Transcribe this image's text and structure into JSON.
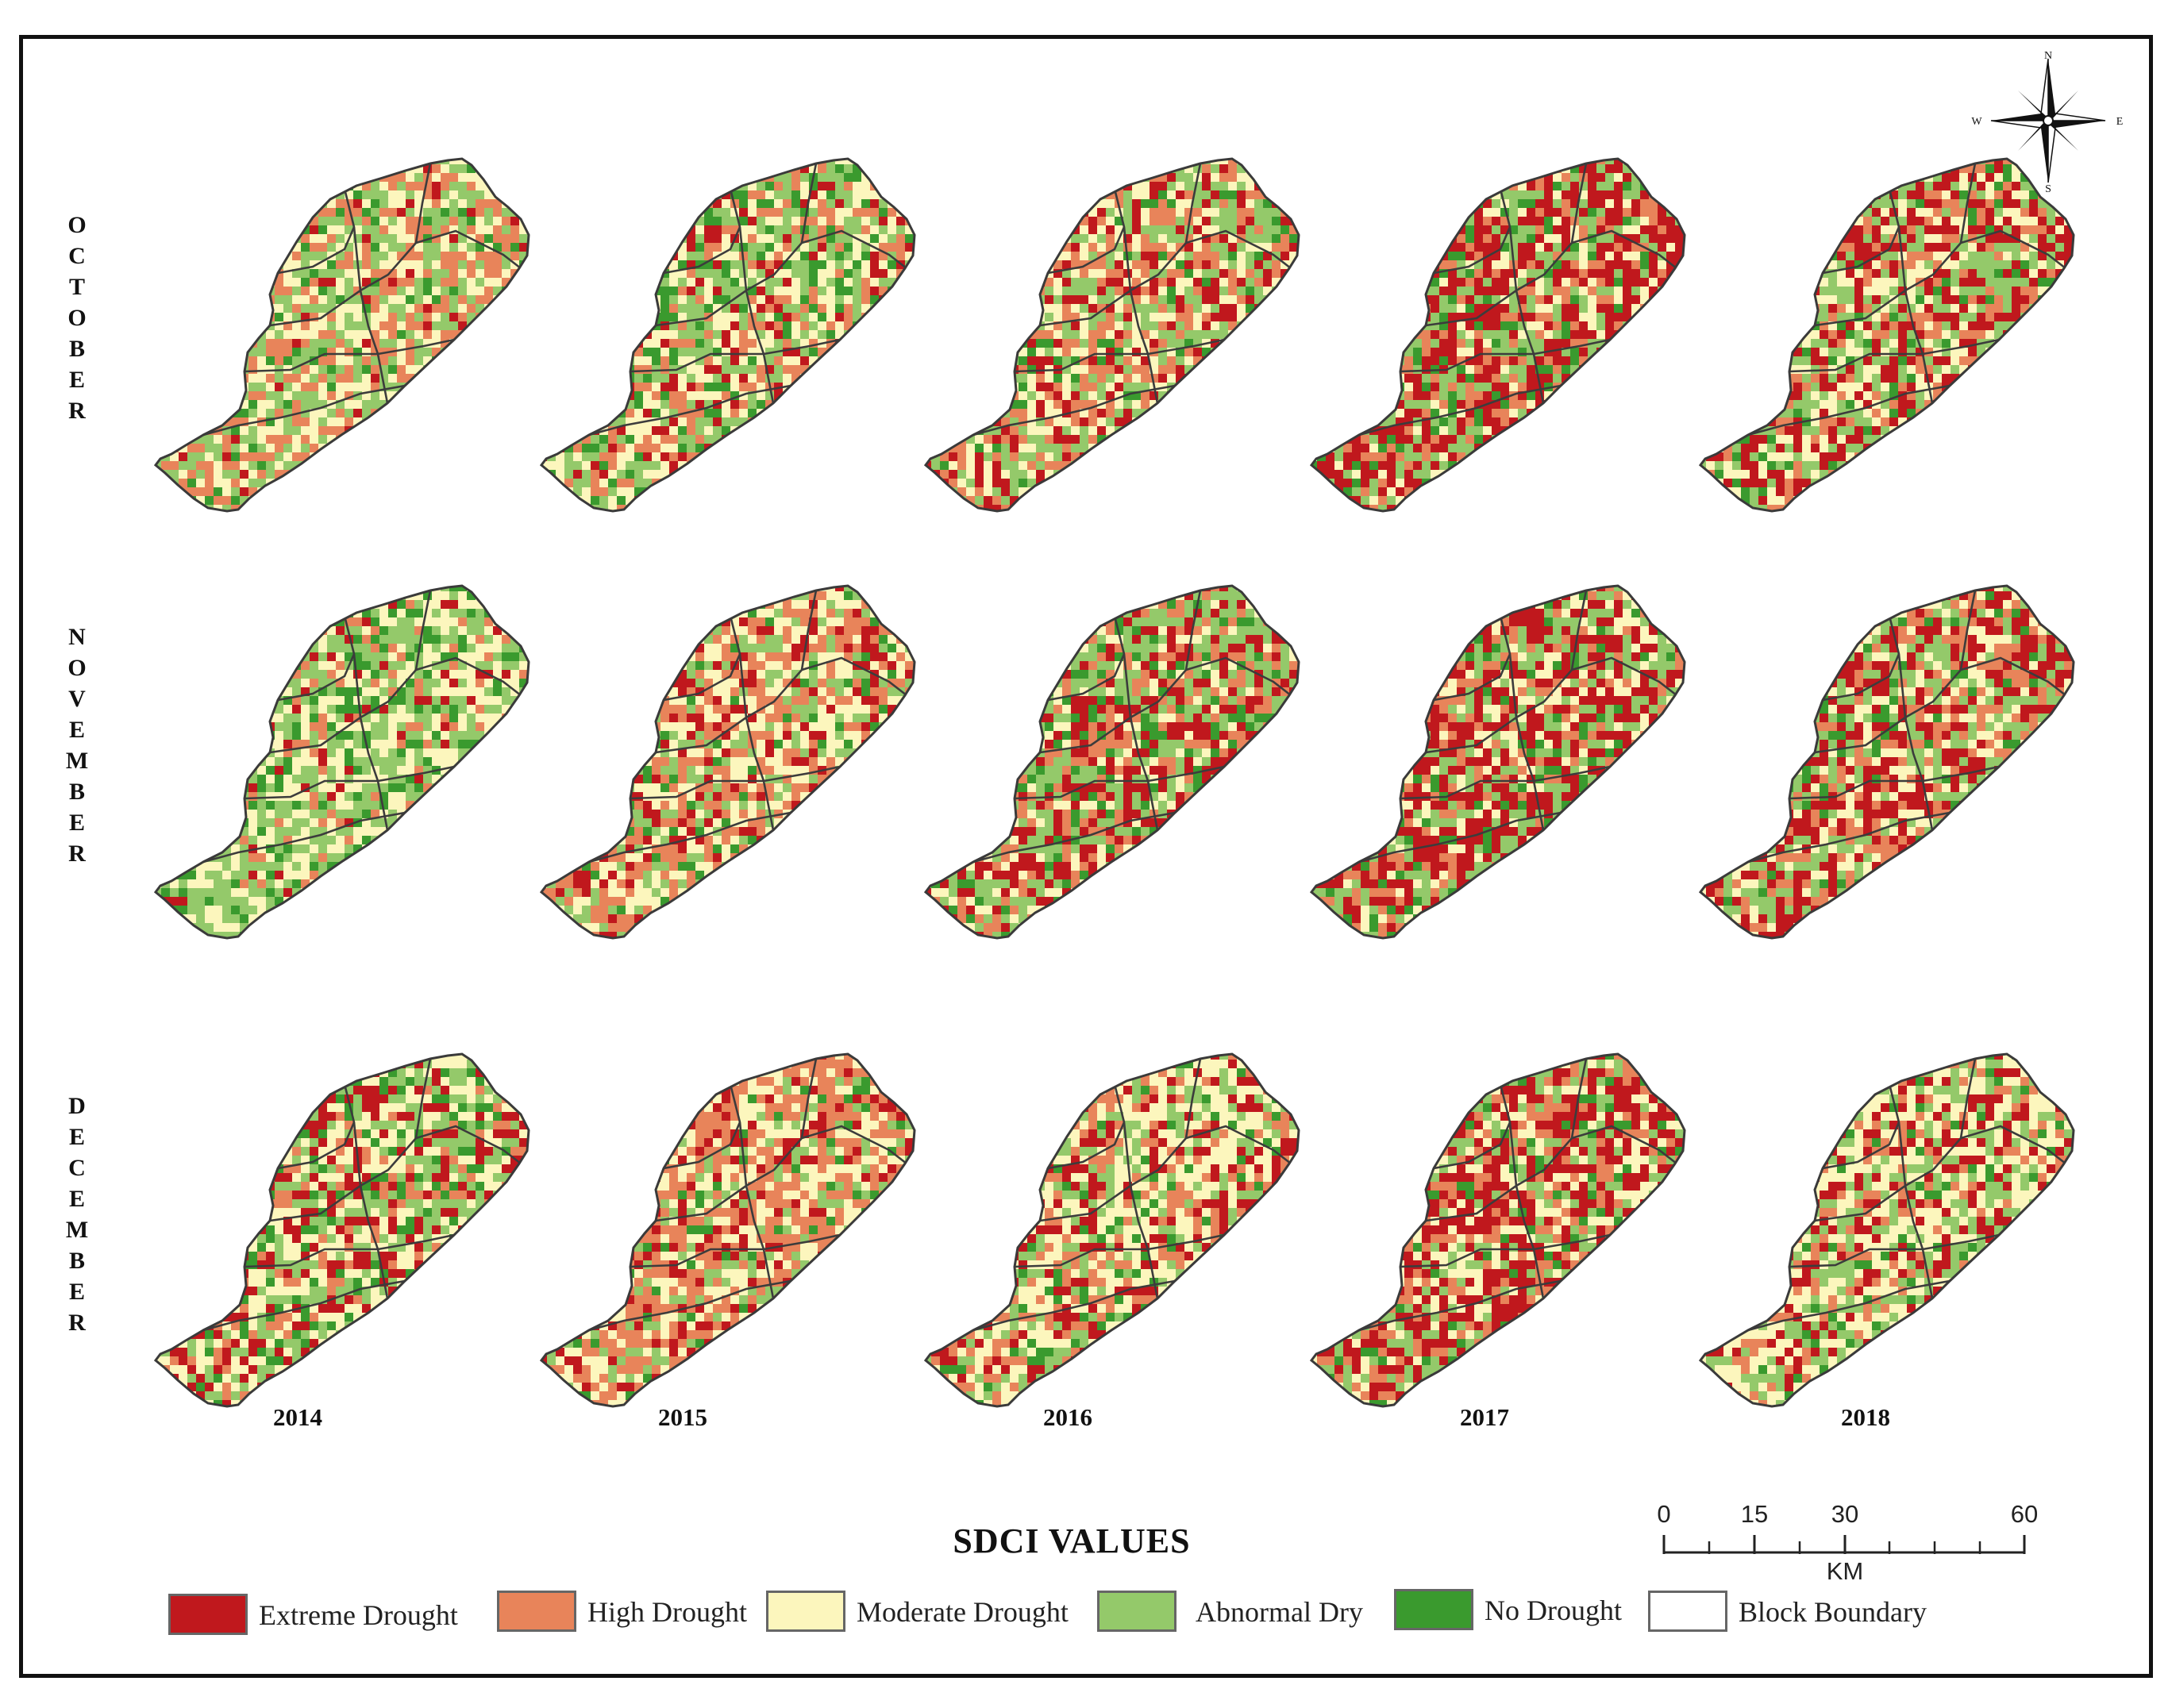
{
  "title": "SDCI VALUES",
  "months": [
    {
      "label": "OCTOBER"
    },
    {
      "label": "NOVEMBER"
    },
    {
      "label": "DECEMBER"
    }
  ],
  "years": [
    "2014",
    "2015",
    "2016",
    "2017",
    "2018"
  ],
  "legend": [
    {
      "label": "Extreme Drought",
      "color": "#c0181d"
    },
    {
      "label": "High Drought",
      "color": "#e8845a"
    },
    {
      "label": "Moderate Drought",
      "color": "#fcf6bd"
    },
    {
      "label": "Abnormal Dry",
      "color": "#94c96a"
    },
    {
      "label": "No Drought",
      "color": "#3a9a2e"
    },
    {
      "label": "Block Boundary",
      "color": "#ffffff"
    }
  ],
  "scale_bar": {
    "ticks": [
      "0",
      "15",
      "30",
      "60"
    ],
    "unit": "KM"
  },
  "compass": {
    "n": "N",
    "s": "S",
    "e": "E",
    "w": "W"
  },
  "map_mix": [
    [
      {
        "extreme": 0.05,
        "high": 0.28,
        "moderate": 0.3,
        "abnormal": 0.3,
        "none": 0.07
      },
      {
        "extreme": 0.12,
        "high": 0.18,
        "moderate": 0.27,
        "abnormal": 0.28,
        "none": 0.15
      },
      {
        "extreme": 0.2,
        "high": 0.24,
        "moderate": 0.27,
        "abnormal": 0.22,
        "none": 0.07
      },
      {
        "extreme": 0.38,
        "high": 0.17,
        "moderate": 0.13,
        "abnormal": 0.24,
        "none": 0.08
      },
      {
        "extreme": 0.3,
        "high": 0.15,
        "moderate": 0.2,
        "abnormal": 0.27,
        "none": 0.08
      }
    ],
    [
      {
        "extreme": 0.04,
        "high": 0.08,
        "moderate": 0.35,
        "abnormal": 0.38,
        "none": 0.15
      },
      {
        "extreme": 0.15,
        "high": 0.3,
        "moderate": 0.3,
        "abnormal": 0.18,
        "none": 0.07
      },
      {
        "extreme": 0.27,
        "high": 0.18,
        "moderate": 0.15,
        "abnormal": 0.28,
        "none": 0.12
      },
      {
        "extreme": 0.38,
        "high": 0.15,
        "moderate": 0.17,
        "abnormal": 0.22,
        "none": 0.08
      },
      {
        "extreme": 0.32,
        "high": 0.18,
        "moderate": 0.2,
        "abnormal": 0.22,
        "none": 0.08
      }
    ],
    [
      {
        "extreme": 0.22,
        "high": 0.12,
        "moderate": 0.28,
        "abnormal": 0.26,
        "none": 0.12
      },
      {
        "extreme": 0.14,
        "high": 0.4,
        "moderate": 0.26,
        "abnormal": 0.14,
        "none": 0.06
      },
      {
        "extreme": 0.18,
        "high": 0.22,
        "moderate": 0.32,
        "abnormal": 0.2,
        "none": 0.08
      },
      {
        "extreme": 0.36,
        "high": 0.2,
        "moderate": 0.16,
        "abnormal": 0.2,
        "none": 0.08
      },
      {
        "extreme": 0.2,
        "high": 0.14,
        "moderate": 0.34,
        "abnormal": 0.26,
        "none": 0.06
      }
    ]
  ]
}
